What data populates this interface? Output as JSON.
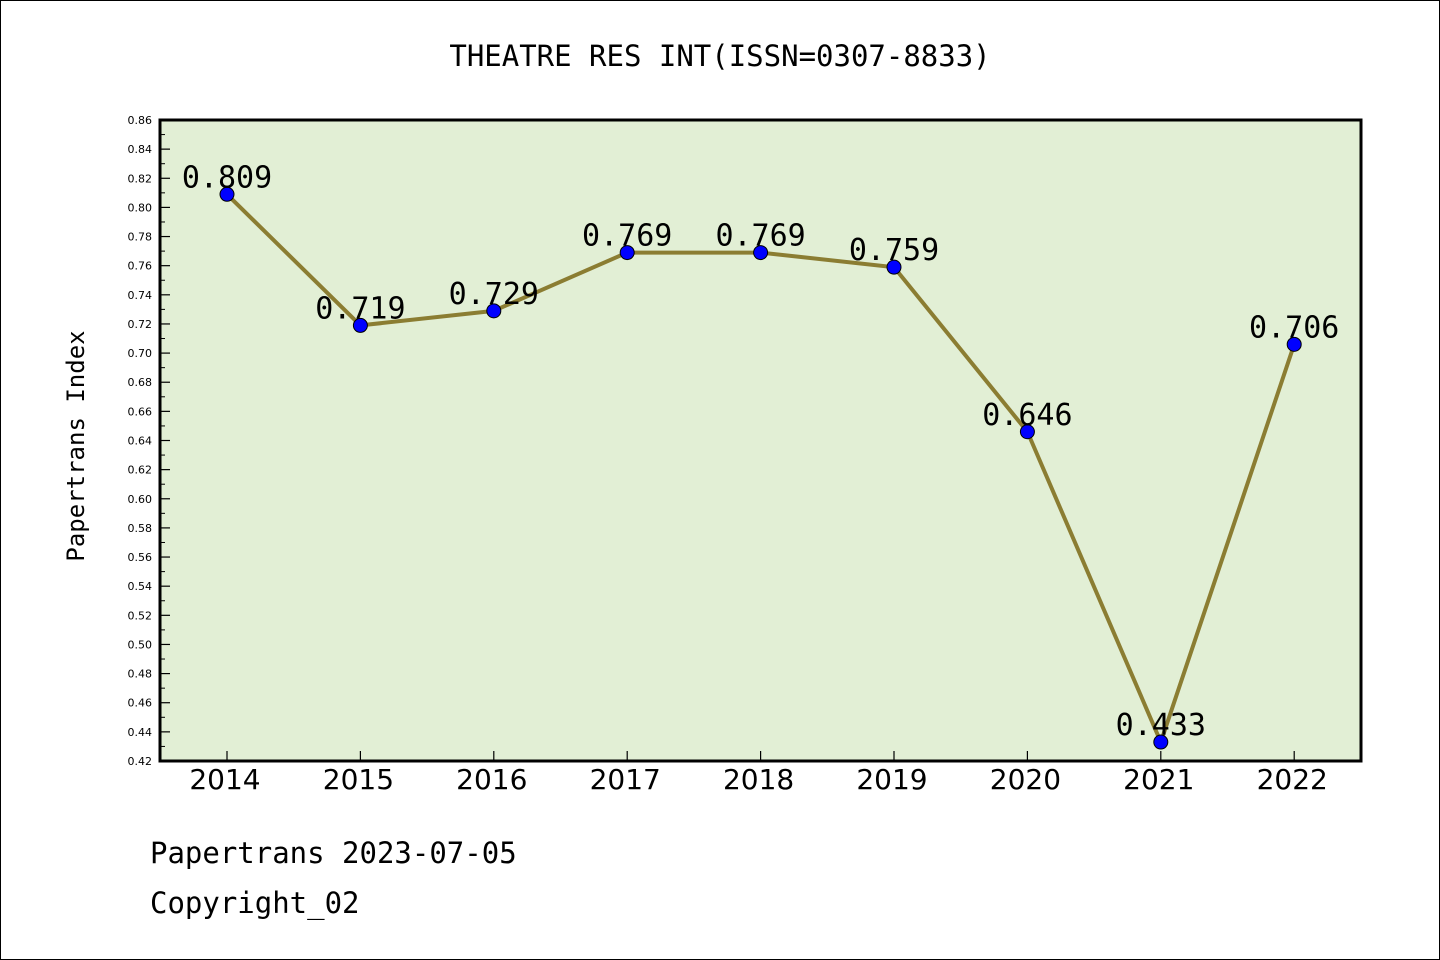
{
  "chart_data": {
    "type": "line",
    "title": "THEATRE RES INT(ISSN=0307-8833)",
    "ylabel": "Papertrans Index",
    "xlabel": "",
    "categories": [
      "2014",
      "2015",
      "2016",
      "2017",
      "2018",
      "2019",
      "2020",
      "2021",
      "2022"
    ],
    "values": [
      0.809,
      0.719,
      0.729,
      0.769,
      0.769,
      0.759,
      0.646,
      0.433,
      0.706
    ],
    "data_labels": [
      "0.809",
      "0.719",
      "0.729",
      "0.769",
      "0.769",
      "0.759",
      "0.646",
      "0.433",
      "0.706"
    ],
    "ylim": [
      0.42,
      0.86
    ],
    "yticks": [
      "0.42",
      "0.44",
      "0.46",
      "0.48",
      "0.50",
      "0.52",
      "0.54",
      "0.56",
      "0.58",
      "0.60",
      "0.62",
      "0.64",
      "0.66",
      "0.68",
      "0.70",
      "0.72",
      "0.74",
      "0.76",
      "0.78",
      "0.80",
      "0.82",
      "0.84",
      "0.86"
    ],
    "grid": false,
    "colors": {
      "plot_background": "#e2efd5",
      "line": "#8b7d32",
      "marker": "#0000ff"
    }
  },
  "footer": {
    "line1": "Papertrans 2023-07-05",
    "line2": "Copyright_02"
  }
}
